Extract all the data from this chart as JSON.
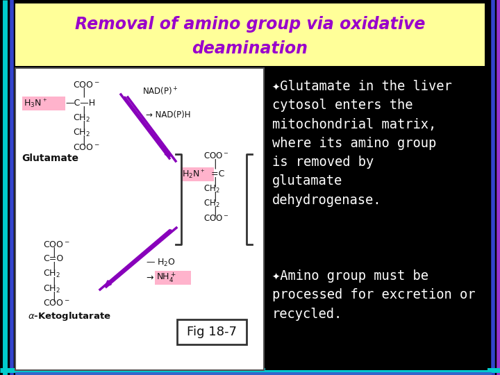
{
  "title_line1": "Removal of amino group via oxidative",
  "title_line2": "deamination",
  "title_color": "#9900cc",
  "title_bg": "#ffff99",
  "bg_color": "#000000",
  "text1_bullet": "✦Glutamate in the liver\ncytosol enters the\nmitochondrial matrix,\nwhere its amino group\nis removed by\nglutamate\ndehydrogenase.",
  "text2_bullet": "✦Amino group must be\nprocessed for excretion or\nrecycled.",
  "fig_label": "Fig 18-7",
  "text_color": "#ffffff",
  "diagram_bg": "#ffffff",
  "pink_bg": "#ffb3cc",
  "arrow_color": "#8800bb"
}
